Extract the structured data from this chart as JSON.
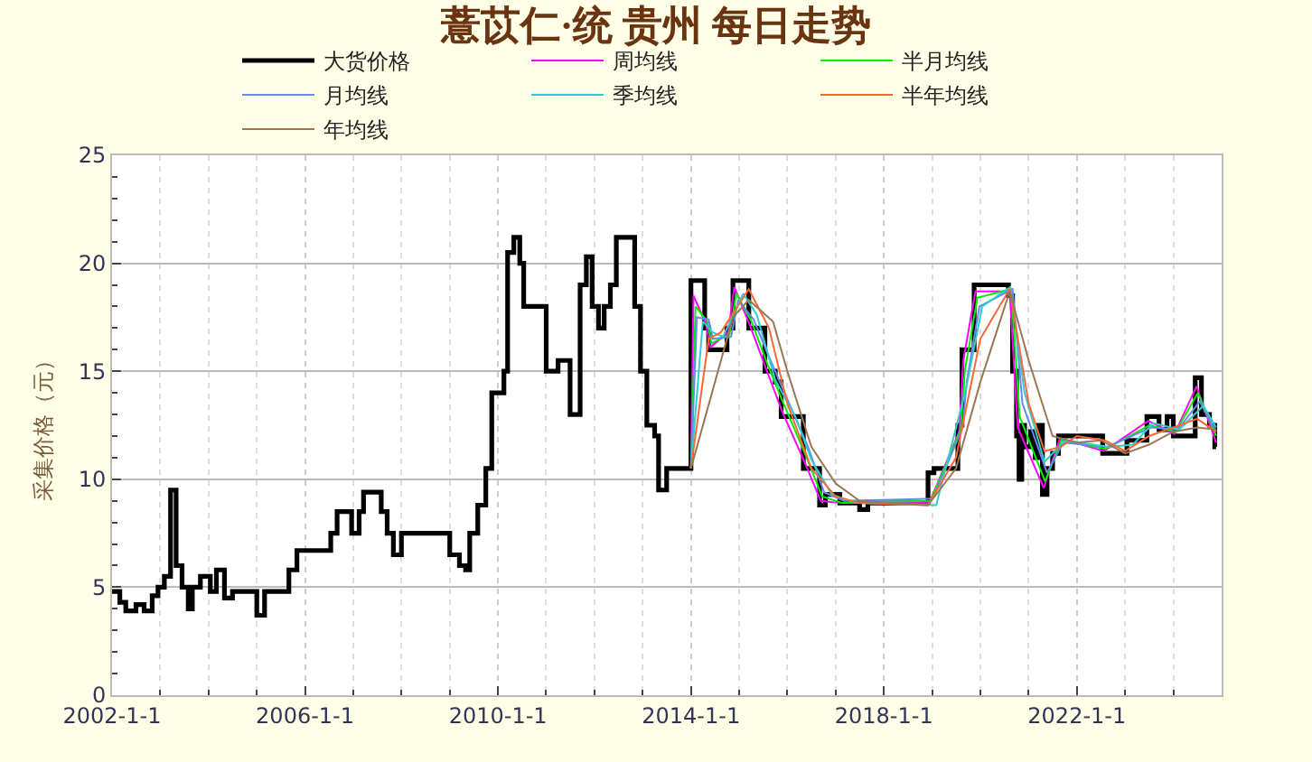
{
  "chart_data": {
    "type": "line",
    "title": "薏苡仁·统 贵州 每日走势",
    "ylabel": "采集价格（元）",
    "xlim": [
      "2002-01-01",
      "2025-01-01"
    ],
    "ylim": [
      0,
      25
    ],
    "xticks": [
      {
        "value": "2002-01-01",
        "label": "2002-1-1"
      },
      {
        "value": "2006-01-01",
        "label": "2006-1-1"
      },
      {
        "value": "2010-01-01",
        "label": "2010-1-1"
      },
      {
        "value": "2014-01-01",
        "label": "2014-1-1"
      },
      {
        "value": "2018-01-01",
        "label": "2018-1-1"
      },
      {
        "value": "2022-01-01",
        "label": "2022-1-1"
      }
    ],
    "yticks": [
      0,
      5,
      10,
      15,
      20,
      25
    ],
    "grid": true,
    "legend": "top",
    "series": [
      {
        "name": "大货价格",
        "type": "step",
        "color": "#000000",
        "x": [
          "2002-01-01",
          "2002-03-01",
          "2002-04-15",
          "2002-07-01",
          "2002-09-01",
          "2002-11-01",
          "2002-12-15",
          "2003-02-01",
          "2003-03-20",
          "2003-05-01",
          "2003-06-15",
          "2003-08-01",
          "2003-09-01",
          "2003-11-01",
          "2004-01-15",
          "2004-03-01",
          "2004-05-01",
          "2004-07-01",
          "2005-01-01",
          "2005-03-01",
          "2005-09-01",
          "2005-11-01",
          "2006-07-15",
          "2006-09-01",
          "2006-12-20",
          "2007-02-15",
          "2007-03-20",
          "2007-08-01",
          "2007-09-15",
          "2007-11-01",
          "2008-01-01",
          "2009-01-01",
          "2009-03-15",
          "2009-05-01",
          "2009-06-01",
          "2009-08-01",
          "2009-10-01",
          "2009-11-15",
          "2010-02-15",
          "2010-03-15",
          "2010-05-01",
          "2010-06-15",
          "2010-07-15",
          "2011-01-01",
          "2011-04-01",
          "2011-07-01",
          "2011-09-15",
          "2011-11-01",
          "2011-12-15",
          "2012-02-01",
          "2012-03-15",
          "2012-05-01",
          "2012-06-15",
          "2012-11-01",
          "2012-12-15",
          "2013-02-01",
          "2013-04-01",
          "2013-05-01",
          "2013-07-01",
          "2014-01-01",
          "2014-04-15",
          "2014-05-15",
          "2014-10-01",
          "2014-11-15",
          "2015-03-15",
          "2015-07-15",
          "2015-10-01",
          "2015-11-15",
          "2016-05-01",
          "2016-09-01",
          "2016-10-15",
          "2017-02-01",
          "2017-07-01",
          "2017-09-01",
          "2018-12-01",
          "2019-01-15",
          "2019-07-15",
          "2019-08-15",
          "2019-11-15",
          "2020-08-01",
          "2020-09-01",
          "2020-10-01",
          "2020-10-20",
          "2020-11-10",
          "2020-12-01",
          "2021-01-15",
          "2021-02-20",
          "2021-03-15",
          "2021-04-15",
          "2021-05-20",
          "2021-07-01",
          "2021-08-15",
          "2022-07-15",
          "2023-01-15",
          "2023-06-15",
          "2023-09-15",
          "2023-11-15",
          "2024-01-01",
          "2024-06-15",
          "2024-08-01",
          "2024-10-01",
          "2024-11-10",
          "2024-11-20"
        ],
        "values": [
          4.8,
          4.3,
          3.9,
          4.2,
          3.9,
          4.6,
          5.0,
          5.5,
          9.5,
          6.0,
          5.0,
          4.0,
          5.0,
          5.5,
          4.8,
          5.8,
          4.5,
          4.8,
          3.7,
          4.8,
          5.8,
          6.7,
          7.5,
          8.5,
          7.5,
          8.5,
          9.4,
          8.5,
          7.5,
          6.5,
          7.5,
          6.5,
          6.0,
          5.8,
          7.5,
          8.8,
          10.5,
          14.0,
          15.0,
          20.5,
          21.2,
          20.0,
          18.0,
          15.0,
          15.5,
          13.0,
          19.0,
          20.3,
          18.0,
          17.0,
          18.0,
          19.0,
          21.2,
          18.0,
          15.0,
          12.5,
          12.0,
          9.5,
          10.5,
          19.2,
          17.0,
          16.0,
          17.0,
          19.2,
          17.0,
          15.0,
          14.5,
          12.9,
          10.5,
          8.8,
          9.3,
          8.9,
          8.6,
          8.9,
          10.3,
          10.5,
          12.5,
          16.0,
          19.0,
          18.5,
          15.0,
          12.0,
          10.0,
          12.5,
          11.5,
          12.2,
          11.0,
          12.5,
          9.3,
          10.5,
          11.2,
          12.0,
          11.2,
          11.8,
          12.9,
          12.3,
          12.9,
          12.0,
          14.7,
          13.0,
          12.5,
          11.5,
          11.5
        ]
      },
      {
        "name": "周均线",
        "color": "#ff00ff",
        "x": [
          "2014-01-01",
          "2014-01-20",
          "2014-04-25",
          "2014-05-25",
          "2014-10-10",
          "2014-11-25",
          "2015-03-25",
          "2015-07-25",
          "2015-11-25",
          "2016-05-10",
          "2016-09-10",
          "2017-02-10",
          "2018-12-10",
          "2019-07-25",
          "2019-08-25",
          "2019-11-25",
          "2020-08-10",
          "2020-10-10",
          "2021-04-25",
          "2021-08-25",
          "2022-07-25",
          "2023-06-25",
          "2024-01-10",
          "2024-06-25",
          "2024-11-20"
        ],
        "values": [
          10.5,
          18.5,
          17.2,
          16.1,
          16.8,
          18.9,
          17.1,
          15.1,
          13.1,
          10.8,
          9.0,
          8.9,
          8.9,
          12.2,
          15.5,
          18.7,
          18.7,
          12.4,
          9.6,
          11.9,
          11.3,
          12.7,
          12.1,
          14.3,
          11.7
        ]
      },
      {
        "name": "半月均线",
        "color": "#00ee00",
        "x": [
          "2014-01-01",
          "2014-02-05",
          "2014-05-05",
          "2014-06-05",
          "2014-10-20",
          "2014-12-10",
          "2015-04-05",
          "2015-08-05",
          "2015-12-10",
          "2016-05-20",
          "2016-09-20",
          "2017-02-20",
          "2018-12-20",
          "2019-08-05",
          "2019-09-05",
          "2019-12-10",
          "2020-08-20",
          "2020-10-25",
          "2021-05-05",
          "2021-09-05",
          "2022-08-05",
          "2023-07-05",
          "2024-01-20",
          "2024-07-05",
          "2024-11-20"
        ],
        "values": [
          10.5,
          18.0,
          17.3,
          16.3,
          16.7,
          18.6,
          17.3,
          15.3,
          13.4,
          11.1,
          9.2,
          8.9,
          9.0,
          12.3,
          15.0,
          18.4,
          18.8,
          12.9,
          9.9,
          11.8,
          11.4,
          12.5,
          12.2,
          14.0,
          12.0
        ]
      },
      {
        "name": "月均线",
        "color": "#6688ee",
        "x": [
          "2014-01-01",
          "2014-02-15",
          "2014-05-15",
          "2014-06-15",
          "2014-11-01",
          "2014-12-25",
          "2015-04-20",
          "2015-08-20",
          "2015-12-25",
          "2016-06-05",
          "2016-10-05",
          "2017-03-05",
          "2019-01-05",
          "2019-08-20",
          "2019-09-20",
          "2019-12-25",
          "2020-09-01",
          "2020-11-15",
          "2021-05-20",
          "2021-09-20",
          "2022-08-20",
          "2023-07-20",
          "2024-02-05",
          "2024-07-20",
          "2024-11-20"
        ],
        "values": [
          10.5,
          17.5,
          17.4,
          16.5,
          16.6,
          18.3,
          17.4,
          15.6,
          13.8,
          11.5,
          9.4,
          9.0,
          9.1,
          12.4,
          14.5,
          18.0,
          18.8,
          13.5,
          10.3,
          11.7,
          11.5,
          12.4,
          12.3,
          13.6,
          12.2
        ]
      },
      {
        "name": "季均线",
        "color": "#33cccc",
        "x": [
          "2014-01-01",
          "2014-04-01",
          "2014-06-15",
          "2014-09-01",
          "2015-02-01",
          "2015-05-15",
          "2015-10-01",
          "2016-03-01",
          "2016-07-01",
          "2016-12-01",
          "2017-06-01",
          "2019-02-01",
          "2019-09-15",
          "2020-01-15",
          "2020-08-15",
          "2020-12-01",
          "2021-05-01",
          "2021-10-01",
          "2022-09-01",
          "2023-03-01",
          "2023-08-01",
          "2024-02-15",
          "2024-08-15",
          "2024-11-20"
        ],
        "values": [
          10.5,
          17.3,
          16.8,
          16.6,
          18.6,
          17.6,
          14.6,
          12.9,
          10.9,
          9.3,
          8.9,
          8.8,
          14.2,
          18.0,
          18.9,
          14.0,
          10.8,
          11.8,
          11.5,
          11.6,
          12.6,
          12.3,
          13.4,
          12.4
        ]
      },
      {
        "name": "半年均线",
        "color": "#ff6633",
        "x": [
          "2014-01-01",
          "2014-05-15",
          "2014-08-15",
          "2015-03-15",
          "2015-08-15",
          "2016-01-01",
          "2016-07-01",
          "2017-01-01",
          "2017-07-01",
          "2018-12-01",
          "2019-07-01",
          "2020-01-01",
          "2020-08-10",
          "2021-01-01",
          "2021-05-01",
          "2021-09-01",
          "2022-01-01",
          "2022-08-01",
          "2023-01-01",
          "2023-07-01",
          "2024-01-01",
          "2024-07-01",
          "2024-11-20"
        ],
        "values": [
          10.5,
          16.5,
          16.8,
          18.8,
          17.0,
          13.5,
          10.5,
          9.2,
          8.9,
          8.8,
          11.0,
          16.5,
          18.8,
          13.5,
          11.3,
          11.5,
          12.0,
          11.8,
          11.3,
          12.0,
          12.4,
          12.8,
          12.2
        ]
      },
      {
        "name": "年均线",
        "color": "#997755",
        "x": [
          "2014-01-01",
          "2014-11-15",
          "2015-03-15",
          "2015-09-15",
          "2016-01-01",
          "2016-07-01",
          "2017-01-01",
          "2017-07-01",
          "2018-01-01",
          "2018-12-01",
          "2019-07-01",
          "2020-01-01",
          "2020-08-10",
          "2021-01-01",
          "2021-07-01",
          "2022-01-01",
          "2022-07-01",
          "2023-01-01",
          "2023-07-01",
          "2024-01-01",
          "2024-07-01",
          "2024-11-20"
        ],
        "values": [
          10.5,
          17.5,
          18.3,
          17.3,
          15.0,
          11.5,
          9.8,
          9.0,
          8.9,
          8.8,
          10.5,
          14.5,
          18.7,
          15.5,
          12.0,
          11.7,
          11.8,
          11.2,
          11.6,
          12.2,
          12.4,
          12.3
        ]
      }
    ]
  }
}
